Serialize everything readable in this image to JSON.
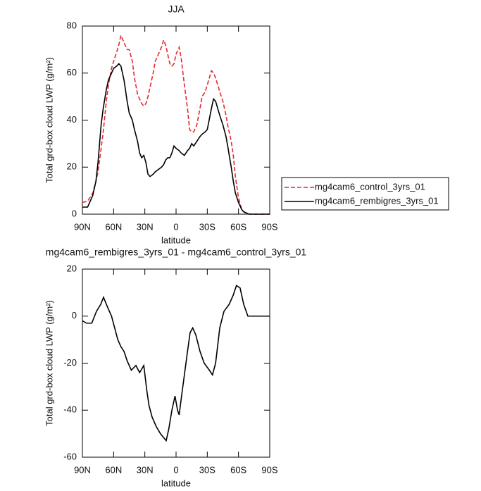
{
  "chart_data": [
    {
      "type": "line",
      "title": "JJA",
      "xlabel": "latitude",
      "ylabel": "Total grd-box cloud LWP (g/m²)",
      "x": [
        90,
        85,
        80,
        77,
        75,
        72,
        70,
        67,
        65,
        62,
        60,
        57,
        55,
        53,
        50,
        47,
        45,
        42,
        40,
        37,
        35,
        33,
        31,
        29,
        27,
        25,
        22,
        20,
        17,
        14,
        12,
        10,
        8,
        6,
        4,
        2,
        0,
        -3,
        -5,
        -8,
        -11,
        -13,
        -15,
        -17,
        -20,
        -23,
        -25,
        -28,
        -30,
        -34,
        -36,
        -38,
        -40,
        -42,
        -45,
        -48,
        -50,
        -53,
        -55,
        -57,
        -60,
        -63,
        -65,
        -70,
        -80,
        -90
      ],
      "series": [
        {
          "name": "mg4cam6_control_3yrs_01",
          "color": "#e8262b",
          "dash": "dashed",
          "values": [
            5,
            5.5,
            9,
            14,
            18,
            28,
            35,
            48,
            55,
            62,
            65,
            69,
            72,
            76,
            73,
            70,
            70,
            65,
            58,
            51,
            49,
            47,
            46,
            47,
            50,
            54,
            60,
            65,
            68,
            71,
            74,
            72,
            68,
            64,
            63,
            64,
            68,
            71,
            66,
            55,
            45,
            36,
            35,
            35,
            38,
            45,
            50,
            52,
            55,
            61,
            60,
            58,
            55,
            52,
            48,
            42,
            37,
            31,
            25,
            16,
            7,
            2,
            1,
            0,
            0,
            0
          ]
        },
        {
          "name": "mg4cam6_rembigres_3yrs_01",
          "color": "#000000",
          "dash": "solid",
          "values": [
            3,
            3,
            8,
            14,
            22,
            38,
            45,
            53,
            57,
            60,
            62,
            63,
            64,
            63,
            57,
            48,
            43,
            40,
            36,
            31,
            26,
            24,
            25,
            22,
            17,
            16,
            17,
            18,
            19,
            20,
            21,
            23,
            24,
            24,
            26,
            29,
            28,
            27,
            26,
            25,
            27,
            28,
            30,
            29,
            31,
            33,
            34,
            35,
            36,
            45,
            49,
            48,
            45,
            42,
            38,
            33,
            28,
            20,
            14,
            9,
            5,
            2,
            1,
            0,
            0,
            0
          ]
        }
      ],
      "xlim": [
        90,
        -90
      ],
      "xticks": [
        {
          "value": 90,
          "label": "90N"
        },
        {
          "value": 60,
          "label": "60N"
        },
        {
          "value": 30,
          "label": "30N"
        },
        0,
        {
          "value": -30,
          "label": "30S"
        },
        {
          "value": -60,
          "label": "60S"
        },
        {
          "value": -90,
          "label": "90S"
        }
      ],
      "ylim": [
        0,
        80
      ],
      "yticks": [
        0,
        20,
        40,
        60,
        80
      ],
      "grid": false,
      "legend": "outside-right"
    },
    {
      "type": "line",
      "title": "mg4cam6_rembigres_3yrs_01 - mg4cam6_control_3yrs_01",
      "xlabel": "latitude",
      "ylabel": "Total grd-box cloud LWP (g/m²)",
      "x": [
        90,
        86,
        81,
        76.5,
        72.4,
        69.7,
        66,
        62,
        59,
        56,
        53,
        50,
        47,
        43,
        38.6,
        35,
        31,
        28,
        26,
        23,
        19,
        15,
        9.5,
        7,
        4,
        1,
        -1.4,
        -3,
        -5,
        -8,
        -11,
        -13.5,
        -16,
        -19,
        -23,
        -27,
        -32,
        -35,
        -38,
        -42,
        -46,
        -51,
        -55,
        -58,
        -61.5,
        -65,
        -69,
        -80,
        -90
      ],
      "series": [
        {
          "color": "#000000",
          "dash": "solid",
          "values": [
            -2,
            -3,
            -3,
            2,
            5,
            8,
            4,
            0,
            -5,
            -10,
            -13,
            -15,
            -19,
            -23,
            -21,
            -24,
            -21,
            -32,
            -38,
            -43,
            -47,
            -50,
            -53,
            -48,
            -40,
            -34,
            -40,
            -42,
            -35,
            -25,
            -15,
            -7,
            -5,
            -8,
            -15,
            -20,
            -23,
            -25,
            -20,
            -5,
            2,
            5,
            9,
            13,
            12,
            5,
            0,
            0,
            0
          ]
        }
      ],
      "xlim": [
        90,
        -90
      ],
      "xticks": [
        {
          "value": 90,
          "label": "90N"
        },
        {
          "value": 60,
          "label": "60N"
        },
        {
          "value": 30,
          "label": "30N"
        },
        0,
        {
          "value": -30,
          "label": "30S"
        },
        {
          "value": -60,
          "label": "60S"
        },
        {
          "value": -90,
          "label": "90S"
        }
      ],
      "ylim": [
        -60,
        20
      ],
      "yticks": [
        -60,
        -40,
        -20,
        0,
        20
      ],
      "grid": false
    }
  ]
}
